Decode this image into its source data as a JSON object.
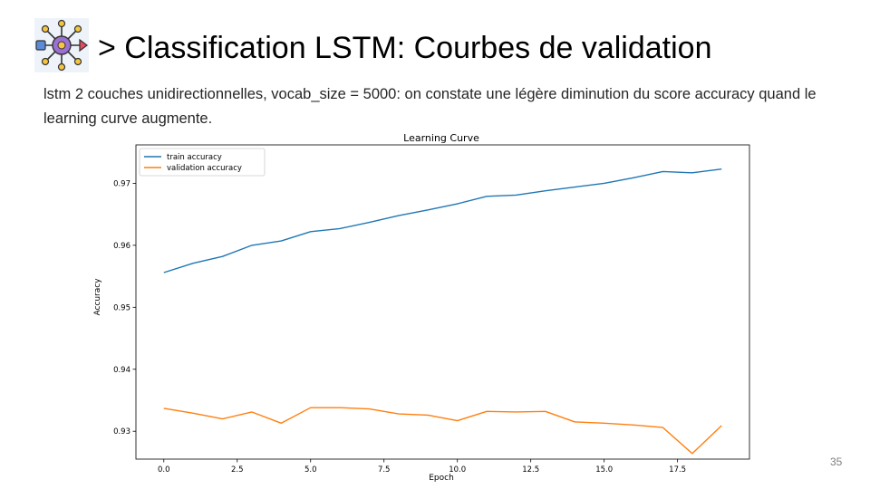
{
  "slide": {
    "title": "> Classification LSTM: Courbes de validation",
    "subtitle": "lstm 2 couches unidirectionnelles, vocab_size = 5000: on constate une légère diminution du score accuracy quand le learning curve augmente.",
    "page_number": "35",
    "logo_icon": "neural-network-logo-icon"
  },
  "chart_data": {
    "type": "line",
    "title": "Learning Curve",
    "xlabel": "Epoch",
    "ylabel": "Accuracy",
    "xlim": [
      -0.95,
      19.95
    ],
    "ylim": [
      0.9255,
      0.9762
    ],
    "xticks": [
      0.0,
      2.5,
      5.0,
      7.5,
      10.0,
      12.5,
      15.0,
      17.5
    ],
    "xtick_labels": [
      "0.0",
      "2.5",
      "5.0",
      "7.5",
      "10.0",
      "12.5",
      "15.0",
      "17.5"
    ],
    "yticks": [
      0.93,
      0.94,
      0.95,
      0.96,
      0.97
    ],
    "ytick_labels": [
      "0.93",
      "0.94",
      "0.95",
      "0.96",
      "0.97"
    ],
    "legend_position": "upper-left",
    "grid": false,
    "x": [
      0,
      1,
      2,
      3,
      4,
      5,
      6,
      7,
      8,
      9,
      10,
      11,
      12,
      13,
      14,
      15,
      16,
      17,
      18,
      19
    ],
    "series": [
      {
        "name": "train accuracy",
        "color": "#1f77b4",
        "values": [
          0.9556,
          0.9571,
          0.9582,
          0.96,
          0.9607,
          0.9622,
          0.9627,
          0.9637,
          0.9648,
          0.9657,
          0.9667,
          0.9679,
          0.9681,
          0.9688,
          0.9694,
          0.97,
          0.9709,
          0.9719,
          0.9717,
          0.9723
        ]
      },
      {
        "name": "validation accuracy",
        "color": "#ff7f0e",
        "values": [
          0.9337,
          0.9329,
          0.932,
          0.9331,
          0.9313,
          0.9338,
          0.9338,
          0.9336,
          0.9328,
          0.9326,
          0.9317,
          0.9332,
          0.9331,
          0.9332,
          0.9315,
          0.9313,
          0.931,
          0.9306,
          0.9264,
          0.9309
        ]
      }
    ]
  }
}
